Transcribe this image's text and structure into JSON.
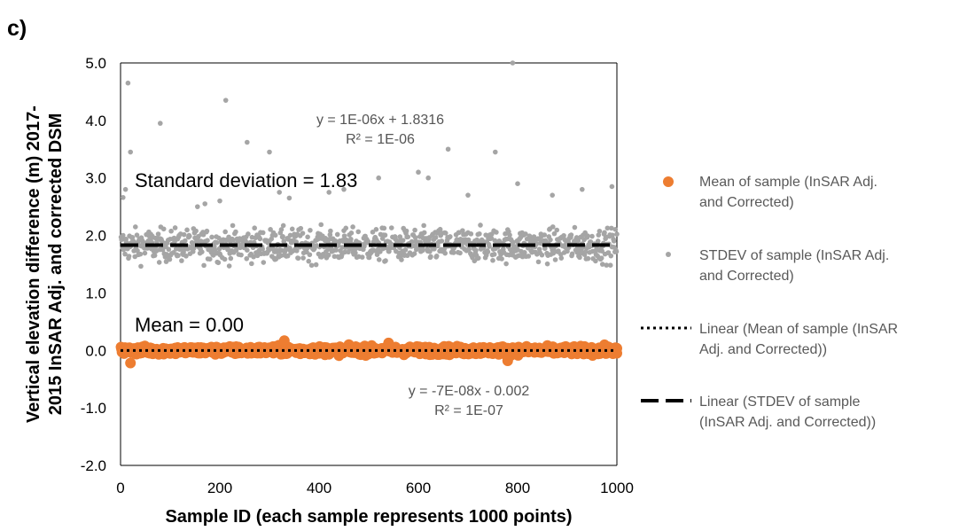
{
  "panel_label": "c)",
  "colors": {
    "mean": "#ED7D31",
    "stdev": "#A5A5A5",
    "trend": "#000000",
    "equation": "#555555",
    "legend_text": "#595959"
  },
  "annotations": {
    "stdev_eq_line1": "y = 1E-06x + 1.8316",
    "stdev_eq_line2": "R² = 1E-06",
    "mean_eq_line1": "y = -7E-08x - 0.002",
    "mean_eq_line2": "R² = 1E-07",
    "stdev_text": "Standard deviation = 1.83",
    "mean_text": "Mean = 0.00"
  },
  "legend": {
    "mean_l1": "Mean of sample (InSAR Adj.",
    "mean_l2": "and Corrected)",
    "stdev_l1": "STDEV of sample (InSAR Adj.",
    "stdev_l2": "and Corrected)",
    "lin_mean_l1": "Linear (Mean of sample (InSAR",
    "lin_mean_l2": "Adj. and Corrected))",
    "lin_stdev_l1": "Linear (STDEV of sample",
    "lin_stdev_l2": "(InSAR Adj. and Corrected))"
  },
  "chart_data": {
    "type": "scatter",
    "xlabel": "Sample ID (each sample represents 1000 points)",
    "ylabel_line1": "Vertical elevation difference (m) 2017-",
    "ylabel_line2": "2015 InSAR Adj. and corrected DSM",
    "xlim": [
      0,
      1000
    ],
    "ylim": [
      -2.0,
      5.0
    ],
    "x_ticks": [
      "0",
      "200",
      "400",
      "600",
      "800",
      "1000"
    ],
    "y_ticks": [
      "5.0",
      "4.0",
      "3.0",
      "2.0",
      "1.0",
      "0.0",
      "-1.0",
      "-2.0"
    ],
    "series": [
      {
        "name": "Mean of sample (InSAR Adj. and Corrected)",
        "n_points": 1000,
        "mean": 0.0,
        "spread": 0.05,
        "selected_points": [
          {
            "x": 20,
            "y": -0.22
          },
          {
            "x": 330,
            "y": 0.17
          },
          {
            "x": 540,
            "y": 0.13
          },
          {
            "x": 780,
            "y": -0.18
          },
          {
            "x": 1000,
            "y": -0.05
          }
        ]
      },
      {
        "name": "STDEV of sample (InSAR Adj. and Corrected)",
        "n_points": 1000,
        "mean": 1.83,
        "spread": 0.2,
        "outliers": [
          {
            "x": 5,
            "y": 2.66
          },
          {
            "x": 10,
            "y": 2.8
          },
          {
            "x": 15,
            "y": 4.65
          },
          {
            "x": 20,
            "y": 3.45
          },
          {
            "x": 80,
            "y": 3.95
          },
          {
            "x": 155,
            "y": 2.5
          },
          {
            "x": 170,
            "y": 2.55
          },
          {
            "x": 200,
            "y": 2.6
          },
          {
            "x": 212,
            "y": 4.35
          },
          {
            "x": 255,
            "y": 3.62
          },
          {
            "x": 300,
            "y": 3.45
          },
          {
            "x": 320,
            "y": 2.75
          },
          {
            "x": 340,
            "y": 2.65
          },
          {
            "x": 420,
            "y": 2.75
          },
          {
            "x": 450,
            "y": 2.8
          },
          {
            "x": 520,
            "y": 3.0
          },
          {
            "x": 600,
            "y": 3.1
          },
          {
            "x": 620,
            "y": 3.0
          },
          {
            "x": 660,
            "y": 3.5
          },
          {
            "x": 700,
            "y": 2.7
          },
          {
            "x": 755,
            "y": 3.45
          },
          {
            "x": 790,
            "y": 5.0
          },
          {
            "x": 800,
            "y": 2.9
          },
          {
            "x": 870,
            "y": 2.7
          },
          {
            "x": 930,
            "y": 2.8
          },
          {
            "x": 990,
            "y": 2.85
          }
        ]
      }
    ],
    "trendlines": [
      {
        "name": "Linear (Mean of sample (InSAR Adj. and Corrected))",
        "slope": -7e-08,
        "intercept": -0.002,
        "style": "dotted"
      },
      {
        "name": "Linear (STDEV of sample (InSAR Adj. and Corrected))",
        "slope": 1e-06,
        "intercept": 1.8316,
        "style": "dashed"
      }
    ]
  }
}
